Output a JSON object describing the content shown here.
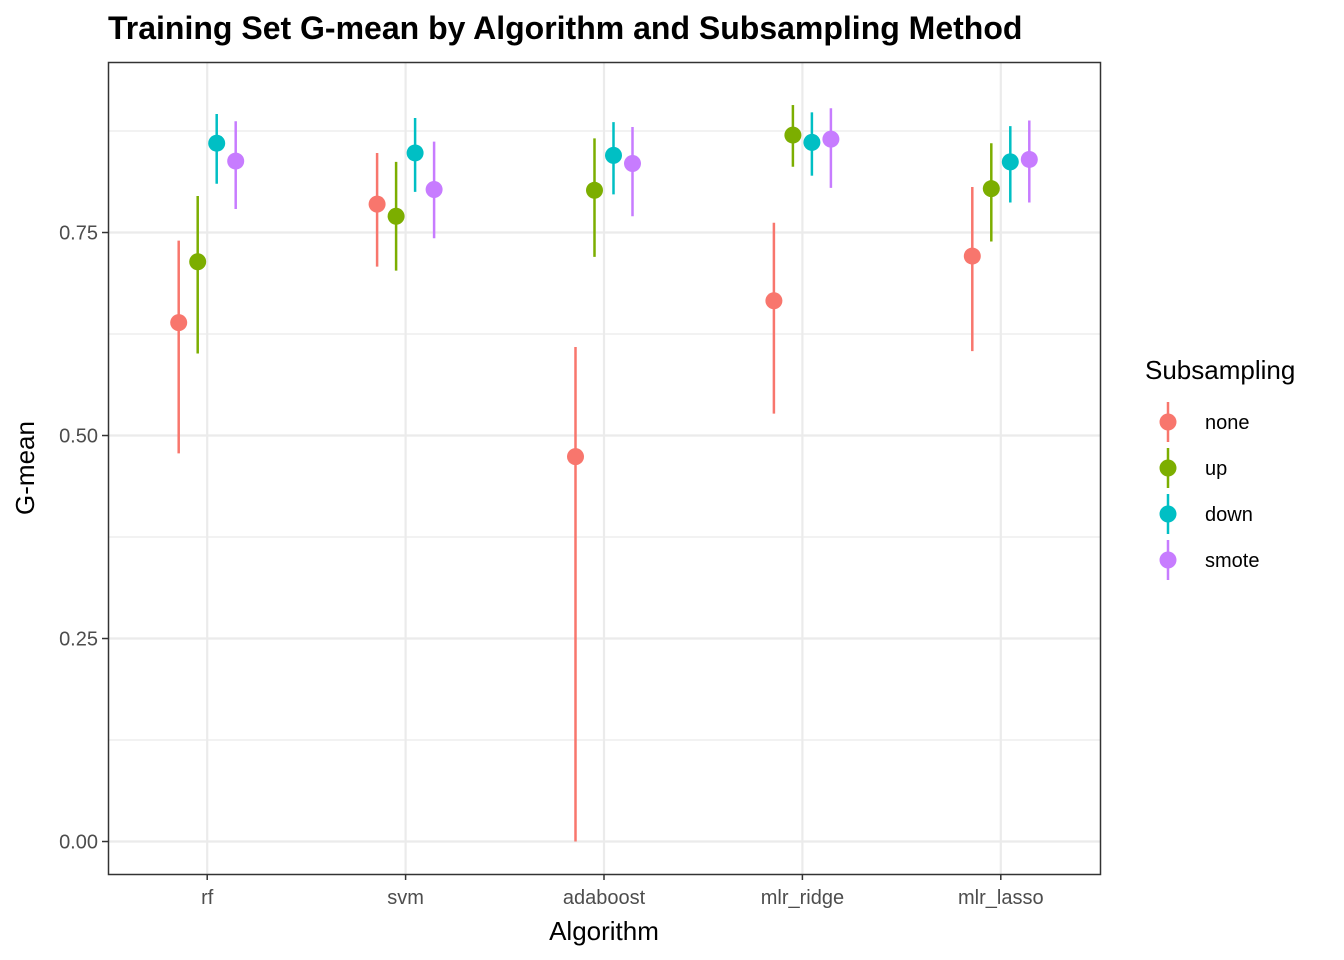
{
  "chart_data": {
    "type": "scatter",
    "title": "Training Set G-mean by Algorithm and Subsampling Method",
    "xlabel": "Algorithm",
    "ylabel": "G-mean",
    "categories": [
      "rf",
      "svm",
      "adaboost",
      "mlr_ridge",
      "mlr_lasso"
    ],
    "ylim": [
      -0.04,
      0.96
    ],
    "yticks": [
      0.0,
      0.25,
      0.5,
      0.75
    ],
    "ytick_labels": [
      "0.00",
      "0.25",
      "0.50",
      "0.75"
    ],
    "grid": true,
    "legend_title": "Subsampling",
    "legend_position": "right",
    "series": [
      {
        "name": "none",
        "color": "#F8766D",
        "values": [
          0.639,
          0.785,
          0.474,
          0.666,
          0.721
        ],
        "lower": [
          0.478,
          0.708,
          0.0,
          0.527,
          0.604
        ],
        "upper": [
          0.74,
          0.848,
          0.609,
          0.762,
          0.806
        ]
      },
      {
        "name": "up",
        "color": "#7CAE00",
        "values": [
          0.714,
          0.77,
          0.802,
          0.87,
          0.804
        ],
        "lower": [
          0.601,
          0.703,
          0.72,
          0.831,
          0.739
        ],
        "upper": [
          0.795,
          0.837,
          0.866,
          0.907,
          0.86
        ]
      },
      {
        "name": "down",
        "color": "#00BFC4",
        "values": [
          0.86,
          0.848,
          0.845,
          0.861,
          0.837
        ],
        "lower": [
          0.81,
          0.8,
          0.797,
          0.82,
          0.787
        ],
        "upper": [
          0.896,
          0.891,
          0.886,
          0.898,
          0.881
        ]
      },
      {
        "name": "smote",
        "color": "#C77CFF",
        "values": [
          0.838,
          0.803,
          0.835,
          0.865,
          0.84
        ],
        "lower": [
          0.779,
          0.743,
          0.77,
          0.805,
          0.787
        ],
        "upper": [
          0.887,
          0.862,
          0.88,
          0.903,
          0.888
        ]
      }
    ]
  }
}
